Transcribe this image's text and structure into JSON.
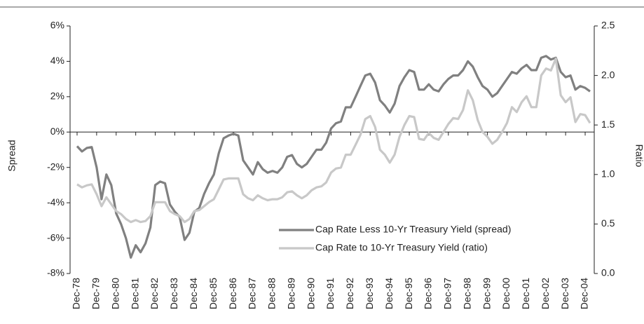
{
  "chart_data": {
    "type": "line",
    "categories": [
      "Dec-78",
      null,
      null,
      null,
      "Dec-79",
      null,
      null,
      null,
      "Dec-80",
      null,
      null,
      null,
      "Dec-81",
      null,
      null,
      null,
      "Dec-82",
      null,
      null,
      null,
      "Dec-83",
      null,
      null,
      null,
      "Dec-84",
      null,
      null,
      null,
      "Dec-85",
      null,
      null,
      null,
      "Dec-86",
      null,
      null,
      null,
      "Dec-87",
      null,
      null,
      null,
      "Dec-88",
      null,
      null,
      null,
      "Dec-89",
      null,
      null,
      null,
      "Dec-90",
      null,
      null,
      null,
      "Dec-91",
      null,
      null,
      null,
      "Dec-92",
      null,
      null,
      null,
      "Dec-93",
      null,
      null,
      null,
      "Dec-94",
      null,
      null,
      null,
      "Dec-95",
      null,
      null,
      null,
      "Dec-96",
      null,
      null,
      null,
      "Dec-97",
      null,
      null,
      null,
      "Dec-98",
      null,
      null,
      null,
      "Dec-99",
      null,
      null,
      null,
      "Dec-00",
      null,
      null,
      null,
      "Dec-01",
      null,
      null,
      null,
      "Dec-02",
      null,
      null,
      null,
      "Dec-03",
      null,
      null,
      null,
      "Dec-04",
      null
    ],
    "series": [
      {
        "name": "Cap Rate Less 10-Yr Treasury Yield (spread)",
        "color": "#808080",
        "axis": "y",
        "values": [
          -0.8,
          -1.1,
          -0.9,
          -0.85,
          -2.0,
          -3.8,
          -2.4,
          -3.0,
          -4.6,
          -5.2,
          -6.0,
          -7.1,
          -6.4,
          -6.8,
          -6.3,
          -5.4,
          -3.0,
          -2.8,
          -2.9,
          -4.1,
          -4.5,
          -4.8,
          -6.1,
          -5.7,
          -4.5,
          -4.3,
          -3.5,
          -2.9,
          -2.4,
          -1.2,
          -0.35,
          -0.2,
          -0.1,
          -0.2,
          -1.6,
          -2.0,
          -2.4,
          -1.7,
          -2.1,
          -2.3,
          -2.2,
          -2.3,
          -2.0,
          -1.4,
          -1.3,
          -1.8,
          -2.0,
          -1.8,
          -1.4,
          -1.0,
          -1.0,
          -0.6,
          0.2,
          0.5,
          0.6,
          1.4,
          1.4,
          2.0,
          2.6,
          3.2,
          3.3,
          2.8,
          1.8,
          1.5,
          1.1,
          1.6,
          2.6,
          3.1,
          3.5,
          3.4,
          2.4,
          2.4,
          2.7,
          2.4,
          2.3,
          2.7,
          3.0,
          3.2,
          3.2,
          3.5,
          4.0,
          3.7,
          3.1,
          2.6,
          2.4,
          2.0,
          2.2,
          2.6,
          3.0,
          3.4,
          3.3,
          3.6,
          3.8,
          3.5,
          3.5,
          4.2,
          4.3,
          4.1,
          4.2,
          3.4,
          3.1,
          3.2,
          2.4,
          2.6,
          2.5,
          2.3
        ]
      },
      {
        "name": "Cap Rate to 10-Yr Treasury Yield (ratio)",
        "color": "#c8c8c8",
        "axis": "y2",
        "values": [
          0.9,
          0.87,
          0.89,
          0.9,
          0.8,
          0.68,
          0.77,
          0.7,
          0.63,
          0.6,
          0.55,
          0.52,
          0.54,
          0.52,
          0.53,
          0.58,
          0.72,
          0.72,
          0.72,
          0.63,
          0.6,
          0.58,
          0.52,
          0.55,
          0.63,
          0.64,
          0.68,
          0.72,
          0.75,
          0.85,
          0.95,
          0.96,
          0.96,
          0.96,
          0.8,
          0.76,
          0.74,
          0.79,
          0.76,
          0.74,
          0.75,
          0.75,
          0.77,
          0.82,
          0.83,
          0.79,
          0.76,
          0.79,
          0.84,
          0.87,
          0.88,
          0.92,
          1.02,
          1.06,
          1.07,
          1.2,
          1.2,
          1.3,
          1.4,
          1.56,
          1.59,
          1.48,
          1.25,
          1.2,
          1.12,
          1.2,
          1.38,
          1.5,
          1.59,
          1.58,
          1.36,
          1.35,
          1.42,
          1.37,
          1.35,
          1.43,
          1.51,
          1.57,
          1.56,
          1.65,
          1.85,
          1.75,
          1.55,
          1.43,
          1.38,
          1.31,
          1.35,
          1.43,
          1.52,
          1.68,
          1.63,
          1.73,
          1.79,
          1.68,
          1.68,
          2.0,
          2.07,
          2.05,
          2.17,
          1.8,
          1.73,
          1.78,
          1.53,
          1.61,
          1.6,
          1.52
        ]
      }
    ],
    "ylabel": "Spread",
    "y2label": "Ratio",
    "ylim": [
      -8,
      6
    ],
    "yticks": [
      {
        "value": -8,
        "label": "-8%"
      },
      {
        "value": -6,
        "label": "-6%"
      },
      {
        "value": -4,
        "label": "-4%"
      },
      {
        "value": -2,
        "label": "-2%"
      },
      {
        "value": 0,
        "label": "0%"
      },
      {
        "value": 2,
        "label": "2%"
      },
      {
        "value": 4,
        "label": "4%"
      },
      {
        "value": 6,
        "label": "6%"
      }
    ],
    "y2lim": [
      0,
      2.5
    ],
    "y2ticks": [
      {
        "value": 0,
        "label": "0.0"
      },
      0.5,
      {
        "value": 1,
        "label": "1.0"
      },
      1.5,
      {
        "value": 2,
        "label": "2.0"
      },
      2.5
    ],
    "grid": false,
    "legend": "lower right"
  }
}
